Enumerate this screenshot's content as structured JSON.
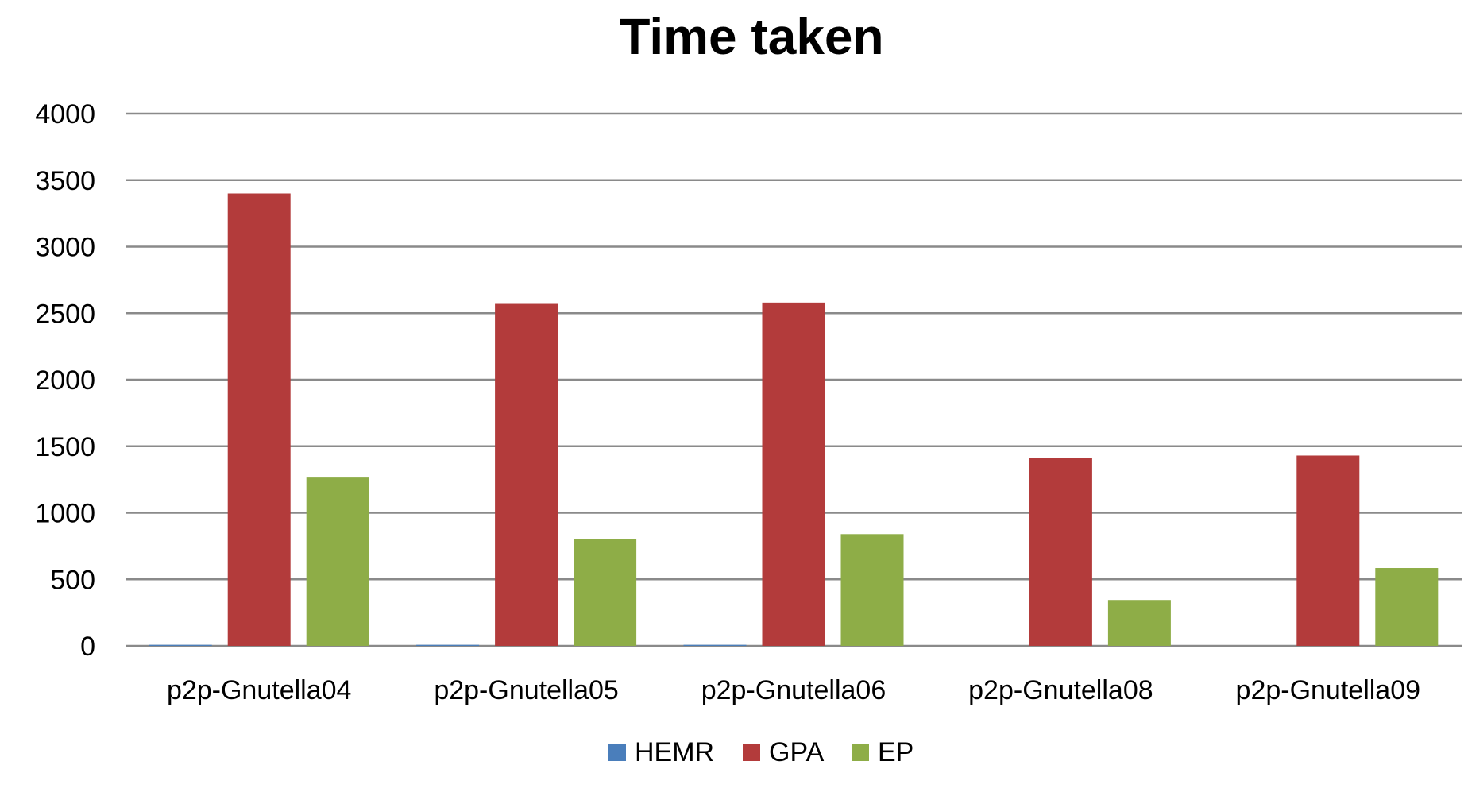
{
  "chart_data": {
    "type": "bar",
    "title": "Time taken",
    "xlabel": "",
    "ylabel": "",
    "ylim": [
      0,
      4000
    ],
    "yticks": [
      0,
      500,
      1000,
      1500,
      2000,
      2500,
      3000,
      3500,
      4000
    ],
    "grid": true,
    "legend": "bottom",
    "categories": [
      "p2p-Gnutella04",
      "p2p-Gnutella05",
      "p2p-Gnutella06",
      "p2p-Gnutella08",
      "p2p-Gnutella09"
    ],
    "series": [
      {
        "name": "HEMR",
        "color": "#4a7ebb",
        "values": [
          8,
          8,
          8,
          0,
          0
        ]
      },
      {
        "name": "GPA",
        "color": "#b33b3b",
        "values": [
          3400,
          2570,
          2580,
          1410,
          1430
        ]
      },
      {
        "name": "EP",
        "color": "#8ead47",
        "values": [
          1265,
          805,
          840,
          345,
          585
        ]
      }
    ]
  }
}
